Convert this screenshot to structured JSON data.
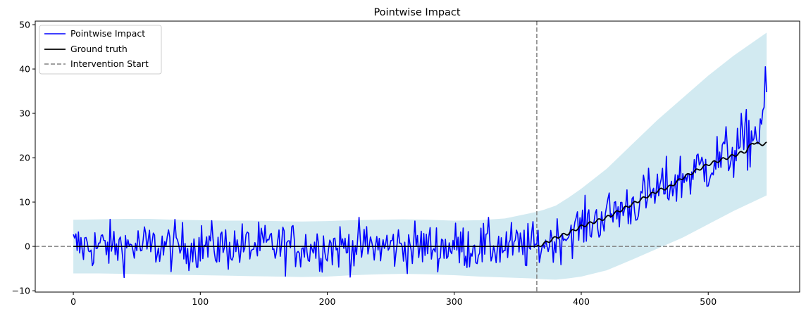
{
  "chart_data": {
    "type": "line",
    "title": "Pointwise Impact",
    "xlabel": "",
    "ylabel": "",
    "xlim": [
      -30,
      572
    ],
    "ylim": [
      -10.3,
      50.8
    ],
    "xticks": [
      0,
      100,
      200,
      300,
      400,
      500
    ],
    "yticks": [
      -10,
      0,
      10,
      20,
      30,
      40,
      50
    ],
    "grid": false,
    "legend_position": "top-left",
    "intervention_start": 365,
    "zero_line": 0,
    "colors": {
      "impact": "#0000ff",
      "ground_truth": "#000000",
      "intervention": "#808080",
      "band": "#add8e6"
    },
    "series": [
      {
        "name": "Pointwise Impact",
        "style": "solid",
        "color": "#0000ff"
      },
      {
        "name": "Ground truth",
        "style": "solid",
        "color": "#000000"
      },
      {
        "name": "Intervention Start",
        "style": "dashed",
        "color": "#808080"
      }
    ],
    "band": {
      "x": [
        0,
        20,
        40,
        60,
        80,
        100,
        120,
        140,
        160,
        180,
        200,
        220,
        240,
        260,
        280,
        300,
        320,
        340,
        350,
        360,
        365,
        370,
        380,
        390,
        400,
        420,
        440,
        460,
        480,
        500,
        520,
        546
      ],
      "lower": [
        -6.1,
        -6.1,
        -6.2,
        -6.3,
        -6.4,
        -6.5,
        -6.6,
        -6.7,
        -6.8,
        -6.9,
        -6.8,
        -6.5,
        -6.3,
        -6.2,
        -6.3,
        -6.5,
        -6.8,
        -7.0,
        -7.1,
        -7.2,
        -7.3,
        -7.4,
        -7.5,
        -7.2,
        -6.8,
        -5.4,
        -3.0,
        -0.5,
        2.0,
        5.0,
        8.0,
        11.5
      ],
      "upper": [
        6.0,
        6.1,
        6.2,
        6.2,
        6.0,
        5.9,
        5.8,
        5.8,
        5.7,
        5.6,
        5.7,
        5.9,
        6.0,
        6.1,
        6.0,
        5.8,
        5.9,
        6.3,
        6.9,
        7.5,
        7.8,
        8.2,
        9.2,
        11.0,
        13.0,
        17.5,
        23.0,
        28.5,
        33.5,
        38.5,
        43.0,
        48.2
      ]
    },
    "ground_truth": {
      "x": [
        0,
        50,
        100,
        150,
        200,
        250,
        300,
        350,
        360,
        365,
        370,
        380,
        390,
        400,
        410,
        420,
        430,
        440,
        450,
        460,
        470,
        480,
        490,
        500,
        510,
        520,
        530,
        535,
        540,
        546
      ],
      "y": [
        0,
        0,
        0,
        0,
        0,
        0,
        0,
        0,
        0,
        0,
        0.5,
        2.0,
        3.0,
        4.5,
        5.5,
        6.5,
        8.0,
        9.5,
        11.0,
        12.5,
        13.5,
        15.5,
        17.0,
        18.5,
        19.5,
        20.5,
        21.5,
        23.5,
        23.0,
        23.2
      ]
    },
    "impact_trend": {
      "x": [
        0,
        365,
        380,
        400,
        420,
        440,
        460,
        480,
        500,
        520,
        540,
        546
      ],
      "y": [
        0,
        0,
        1.5,
        4.5,
        7.0,
        9.5,
        12.5,
        15.5,
        18.5,
        21.5,
        26.0,
        34.5
      ]
    }
  }
}
